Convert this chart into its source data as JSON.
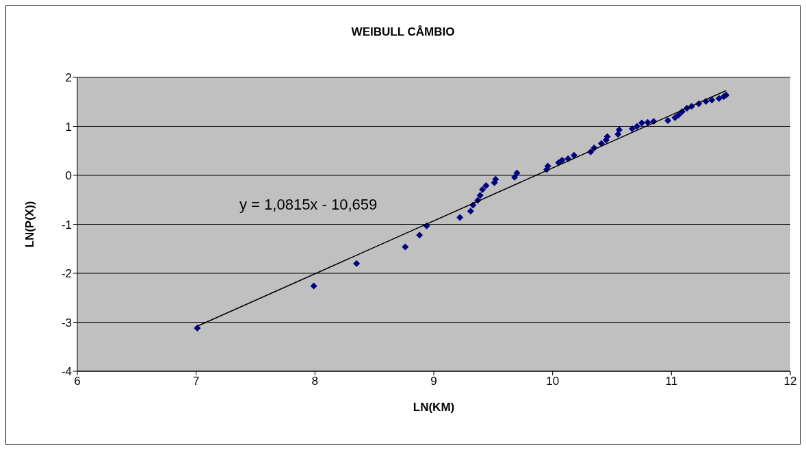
{
  "chart_data": {
    "type": "scatter",
    "title": "WEIBULL CÂMBIO",
    "xlabel": "LN(KM)",
    "ylabel": "LN(P(X))",
    "xlim": [
      6,
      12
    ],
    "xticks": [
      6,
      7,
      8,
      9,
      10,
      11,
      12
    ],
    "ylim": [
      -4,
      2
    ],
    "yticks": [
      -4,
      -3,
      -2,
      -1,
      0,
      1,
      2
    ],
    "grid": "y",
    "legend": false,
    "annotations": [
      "y = 1,0815x - 10,659"
    ],
    "series": [
      {
        "marker": "diamond",
        "color": "#000080",
        "x": [
          7.01,
          7.99,
          8.35,
          8.76,
          8.88,
          8.94,
          9.22,
          9.31,
          9.33,
          9.37,
          9.39,
          9.41,
          9.44,
          9.51,
          9.52,
          9.68,
          9.7,
          9.95,
          9.96,
          10.05,
          10.08,
          10.13,
          10.18,
          10.32,
          10.35,
          10.41,
          10.45,
          10.46,
          10.55,
          10.56,
          10.67,
          10.71,
          10.75,
          10.8,
          10.85,
          10.97,
          11.03,
          11.06,
          11.09,
          11.13,
          11.17,
          11.23,
          11.29,
          11.34,
          11.4,
          11.44,
          11.46
        ],
        "values": [
          -3.12,
          -2.26,
          -1.8,
          -1.46,
          -1.22,
          -1.03,
          -0.86,
          -0.73,
          -0.61,
          -0.51,
          -0.41,
          -0.29,
          -0.21,
          -0.15,
          -0.08,
          -0.04,
          0.05,
          0.12,
          0.19,
          0.26,
          0.31,
          0.34,
          0.41,
          0.48,
          0.56,
          0.65,
          0.72,
          0.79,
          0.84,
          0.93,
          0.95,
          1.0,
          1.07,
          1.08,
          1.1,
          1.12,
          1.18,
          1.23,
          1.3,
          1.37,
          1.41,
          1.46,
          1.51,
          1.54,
          1.57,
          1.61,
          1.64
        ]
      },
      {
        "type": "line",
        "marker": "none",
        "color": "#000000",
        "x": [
          7.01,
          11.46
        ],
        "values": [
          -3.08,
          1.73
        ]
      }
    ]
  }
}
